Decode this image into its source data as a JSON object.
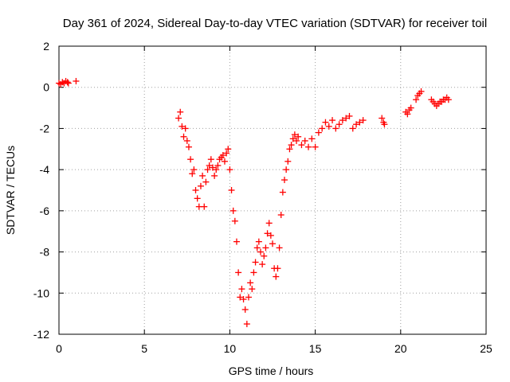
{
  "chart_data": {
    "type": "scatter",
    "title": "Day 361 of 2024, Sidereal Day-to-day VTEC variation (SDTVAR) for receiver toil",
    "xlabel": "GPS time / hours",
    "ylabel": "SDTVAR / TECUs",
    "xlim": [
      0,
      25
    ],
    "ylim": [
      -12,
      2
    ],
    "xticks": [
      0,
      5,
      10,
      15,
      20,
      25
    ],
    "yticks": [
      -12,
      -10,
      -8,
      -6,
      -4,
      -2,
      0,
      2
    ],
    "grid": true,
    "marker": "+",
    "color": "#ff0000",
    "series": [
      {
        "x": [
          0.0,
          0.1,
          0.2,
          0.3,
          0.4,
          0.5,
          0.55,
          1.0,
          7.0,
          7.1,
          7.2,
          7.3,
          7.4,
          7.5,
          7.6,
          7.7,
          7.8,
          7.9,
          8.0,
          8.1,
          8.2,
          8.3,
          8.4,
          8.5,
          8.6,
          8.7,
          8.8,
          8.9,
          9.0,
          9.1,
          9.2,
          9.3,
          9.4,
          9.5,
          9.6,
          9.7,
          9.8,
          9.9,
          10.0,
          10.1,
          10.2,
          10.3,
          10.4,
          10.5,
          10.6,
          10.7,
          10.8,
          10.9,
          11.0,
          11.1,
          11.2,
          11.3,
          11.4,
          11.5,
          11.6,
          11.7,
          11.8,
          11.9,
          12.0,
          12.1,
          12.2,
          12.3,
          12.4,
          12.5,
          12.6,
          12.7,
          12.8,
          12.9,
          13.0,
          13.1,
          13.2,
          13.3,
          13.4,
          13.5,
          13.6,
          13.7,
          13.8,
          13.9,
          14.0,
          14.2,
          14.4,
          14.6,
          14.8,
          15.0,
          15.2,
          15.4,
          15.6,
          15.8,
          16.0,
          16.2,
          16.4,
          16.6,
          16.8,
          17.0,
          17.2,
          17.4,
          17.6,
          17.8,
          18.9,
          19.0,
          19.05,
          20.3,
          20.4,
          20.5,
          20.6,
          20.9,
          21.0,
          21.1,
          21.2,
          21.8,
          21.9,
          22.0,
          22.1,
          22.2,
          22.3,
          22.4,
          22.5,
          22.6,
          22.7,
          22.8
        ],
        "y": [
          0.2,
          0.15,
          0.25,
          0.2,
          0.3,
          0.25,
          0.2,
          0.3,
          -1.5,
          -1.2,
          -1.9,
          -2.4,
          -2.0,
          -2.6,
          -2.9,
          -3.5,
          -4.2,
          -4.0,
          -5.0,
          -5.4,
          -5.8,
          -4.8,
          -4.3,
          -5.8,
          -4.6,
          -4.0,
          -3.8,
          -3.5,
          -3.9,
          -4.3,
          -4.0,
          -3.8,
          -3.5,
          -3.4,
          -3.3,
          -3.6,
          -3.2,
          -3.0,
          -4.0,
          -5.0,
          -6.0,
          -6.5,
          -7.5,
          -9.0,
          -10.2,
          -9.8,
          -10.3,
          -10.8,
          -11.5,
          -10.2,
          -9.5,
          -9.8,
          -9.0,
          -8.5,
          -7.8,
          -7.5,
          -8.0,
          -8.6,
          -8.2,
          -7.8,
          -7.1,
          -6.6,
          -7.2,
          -7.6,
          -8.8,
          -9.2,
          -8.8,
          -7.8,
          -6.2,
          -5.1,
          -4.5,
          -4.0,
          -3.6,
          -3.0,
          -2.8,
          -2.5,
          -2.3,
          -2.6,
          -2.4,
          -2.8,
          -2.6,
          -2.9,
          -2.5,
          -2.9,
          -2.2,
          -2.0,
          -1.7,
          -1.9,
          -1.6,
          -2.0,
          -1.8,
          -1.6,
          -1.5,
          -1.4,
          -2.0,
          -1.8,
          -1.7,
          -1.6,
          -1.5,
          -1.7,
          -1.8,
          -1.2,
          -1.3,
          -1.1,
          -1.0,
          -0.6,
          -0.4,
          -0.3,
          -0.2,
          -0.6,
          -0.7,
          -0.8,
          -0.9,
          -0.8,
          -0.7,
          -0.7,
          -0.6,
          -0.6,
          -0.5,
          -0.6
        ]
      }
    ]
  }
}
